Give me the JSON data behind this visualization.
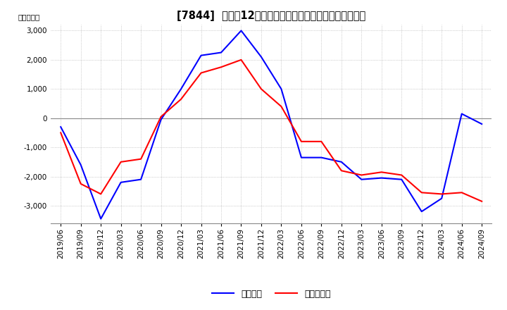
{
  "title": "[7844]  利益だ12か月移動合計の対前年同期増減額の推移",
  "ylabel": "（百万円）",
  "ylim": [
    -3600,
    3200
  ],
  "yticks": [
    -3000,
    -2000,
    -1000,
    0,
    1000,
    2000,
    3000
  ],
  "legend_labels": [
    "経常利益",
    "当期純利益"
  ],
  "line_colors": [
    "#0000ff",
    "#ff0000"
  ],
  "x_labels": [
    "2019/06",
    "2019/09",
    "2019/12",
    "2020/03",
    "2020/06",
    "2020/09",
    "2020/12",
    "2021/03",
    "2021/06",
    "2021/09",
    "2021/12",
    "2022/03",
    "2022/06",
    "2022/09",
    "2022/12",
    "2023/03",
    "2023/06",
    "2023/09",
    "2023/12",
    "2024/03",
    "2024/06",
    "2024/09"
  ],
  "operating_profit": [
    -300,
    -1600,
    -3450,
    -2200,
    -2100,
    -50,
    1000,
    2150,
    2250,
    3000,
    2100,
    1000,
    -1350,
    -1350,
    -1500,
    -2100,
    -2050,
    -2100,
    -3200,
    -2750,
    150,
    -200
  ],
  "net_profit": [
    -500,
    -2250,
    -2600,
    -1500,
    -1400,
    50,
    650,
    1550,
    1750,
    2000,
    1000,
    400,
    -800,
    -800,
    -1800,
    -1950,
    -1850,
    -1950,
    -2550,
    -2600,
    -2550,
    -2850
  ],
  "background_color": "#ffffff",
  "grid_color": "#aaaaaa",
  "zero_line_color": "#888888",
  "title_fontsize": 10.5,
  "axis_fontsize": 7.5,
  "legend_fontsize": 9
}
